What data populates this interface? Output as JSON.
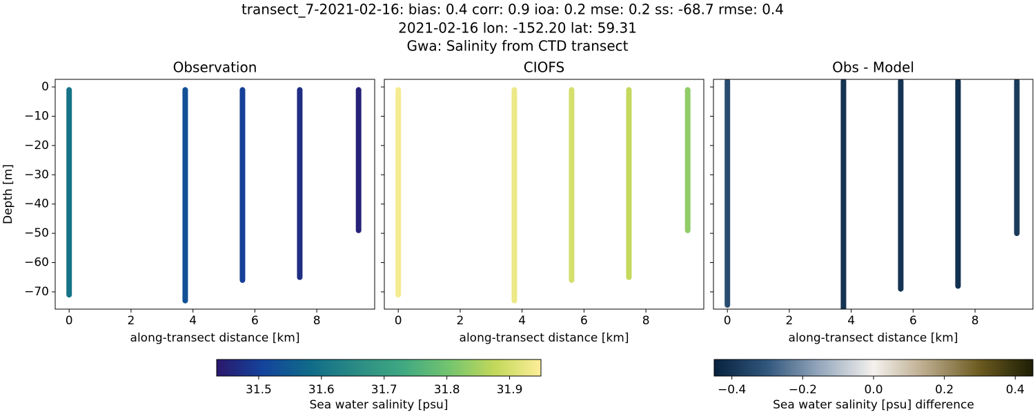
{
  "title": [
    "transect_7-2021-02-16: bias: 0.4  corr: 0.9  ioa: 0.2  mse: 0.2  ss: -68.7  rmse: 0.4",
    "2021-02-16 lon: -152.20 lat: 59.31",
    "Gwa: Salinity from CTD transect"
  ],
  "chart_data": [
    {
      "type": "scatter",
      "title": "Observation",
      "xlabel": "along-transect distance [km]",
      "ylabel": "Depth [m]",
      "xlim": [
        -0.45,
        9.87
      ],
      "ylim": [
        -75.9,
        2.6
      ],
      "xticks": [
        0,
        2,
        4,
        6,
        8
      ],
      "yticks": [
        0,
        {
          "value": -10,
          "label": "−10"
        },
        {
          "value": -20,
          "label": "−20"
        },
        {
          "value": -30,
          "label": "−30"
        },
        {
          "value": -40,
          "label": "−40"
        },
        {
          "value": -50,
          "label": "−50"
        },
        {
          "value": -60,
          "label": "−60"
        },
        {
          "value": -70,
          "label": "−70"
        }
      ],
      "clim": [
        31.433,
        31.95
      ],
      "colormap": [
        "#2a186c",
        "#14439c",
        "#0f6b89",
        "#2a8b84",
        "#3fa882",
        "#72c46f",
        "#c2d85a",
        "#fdee99"
      ],
      "series": [
        {
          "x": 0,
          "y": [
            -1,
            -71
          ],
          "value": 31.6
        },
        {
          "x": 3.75,
          "y": [
            -1,
            -73
          ],
          "value": 31.53
        },
        {
          "x": 5.6,
          "y": [
            -1,
            -66
          ],
          "value": 31.5
        },
        {
          "x": 7.45,
          "y": [
            -1,
            -65
          ],
          "value": 31.47
        },
        {
          "x": 9.35,
          "y": [
            -1,
            -49
          ],
          "value": 31.45
        }
      ],
      "colorbar": {
        "label": "Sea water salinity [psu]",
        "ticks": [
          31.5,
          31.6,
          31.7,
          31.8,
          31.9
        ]
      }
    },
    {
      "type": "scatter",
      "title": "CIOFS",
      "xlabel": "along-transect distance [km]",
      "xlim": [
        -0.45,
        9.87
      ],
      "ylim": [
        -75.9,
        2.6
      ],
      "xticks": [
        0,
        2,
        4,
        6,
        8
      ],
      "yticks": [
        0,
        -10,
        -20,
        -30,
        -40,
        -50,
        -60,
        -70
      ],
      "clim": [
        31.433,
        31.95
      ],
      "colormap": [
        "#2a186c",
        "#14439c",
        "#0f6b89",
        "#2a8b84",
        "#3fa882",
        "#72c46f",
        "#c2d85a",
        "#fdee99"
      ],
      "series": [
        {
          "x": 0,
          "y": [
            -1,
            -71
          ],
          "value": 31.94
        },
        {
          "x": 3.75,
          "y": [
            -1,
            -73
          ],
          "value": 31.93
        },
        {
          "x": 5.6,
          "y": [
            -1,
            -66
          ],
          "value": 31.9
        },
        {
          "x": 7.45,
          "y": [
            -1,
            -65
          ],
          "value": 31.88
        },
        {
          "x": 9.35,
          "y": [
            -1,
            -49
          ],
          "value": 31.83
        }
      ]
    },
    {
      "type": "scatter",
      "title": "Obs - Model",
      "xlabel": "along-transect distance [km]",
      "xlim": [
        -0.45,
        9.87
      ],
      "ylim": [
        -75.9,
        2.6
      ],
      "xticks": [
        0,
        2,
        4,
        6,
        8
      ],
      "yticks": [
        0,
        -10,
        -20,
        -30,
        -40,
        -50,
        -60,
        -70
      ],
      "clim": [
        -0.45,
        0.45
      ],
      "colormap": [
        "#07223e",
        "#31577d",
        "#97a9bd",
        "#f4f1ee",
        "#b9a888",
        "#6b5a1f",
        "#1c1e05"
      ],
      "series": [
        {
          "x": 0,
          "y": [
            2,
            -74.5
          ],
          "value": -0.33
        },
        {
          "x": 3.75,
          "y": [
            2,
            -78
          ],
          "value": -0.4
        },
        {
          "x": 5.6,
          "y": [
            2,
            -69
          ],
          "value": -0.4
        },
        {
          "x": 7.45,
          "y": [
            2,
            -68
          ],
          "value": -0.41
        },
        {
          "x": 9.35,
          "y": [
            2,
            -50
          ],
          "value": -0.38
        }
      ],
      "colorbar": {
        "label": "Sea water salinity [psu] difference",
        "ticks": [
          {
            "value": -0.4,
            "label": "−0.4"
          },
          {
            "value": -0.2,
            "label": "−0.2"
          },
          {
            "value": 0,
            "label": "0.0"
          },
          0.2,
          0.4
        ]
      }
    }
  ]
}
